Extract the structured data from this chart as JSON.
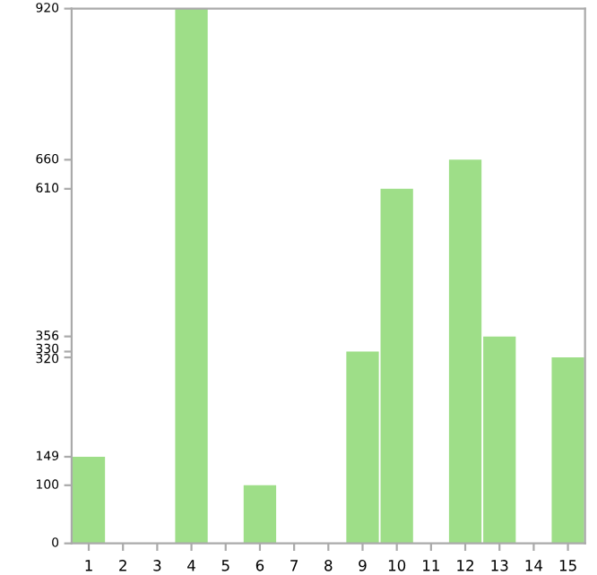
{
  "chart_data": {
    "type": "bar",
    "categories": [
      "1",
      "2",
      "3",
      "4",
      "5",
      "6",
      "7",
      "8",
      "9",
      "10",
      "11",
      "12",
      "13",
      "14",
      "15"
    ],
    "values": [
      149,
      0,
      0,
      920,
      0,
      100,
      0,
      0,
      330,
      610,
      0,
      660,
      356,
      0,
      320
    ],
    "color": "#9ede88",
    "ylim": [
      0,
      920
    ],
    "yticks": [
      0,
      100,
      149,
      320,
      330,
      356,
      610,
      660,
      920
    ],
    "grid": false
  }
}
